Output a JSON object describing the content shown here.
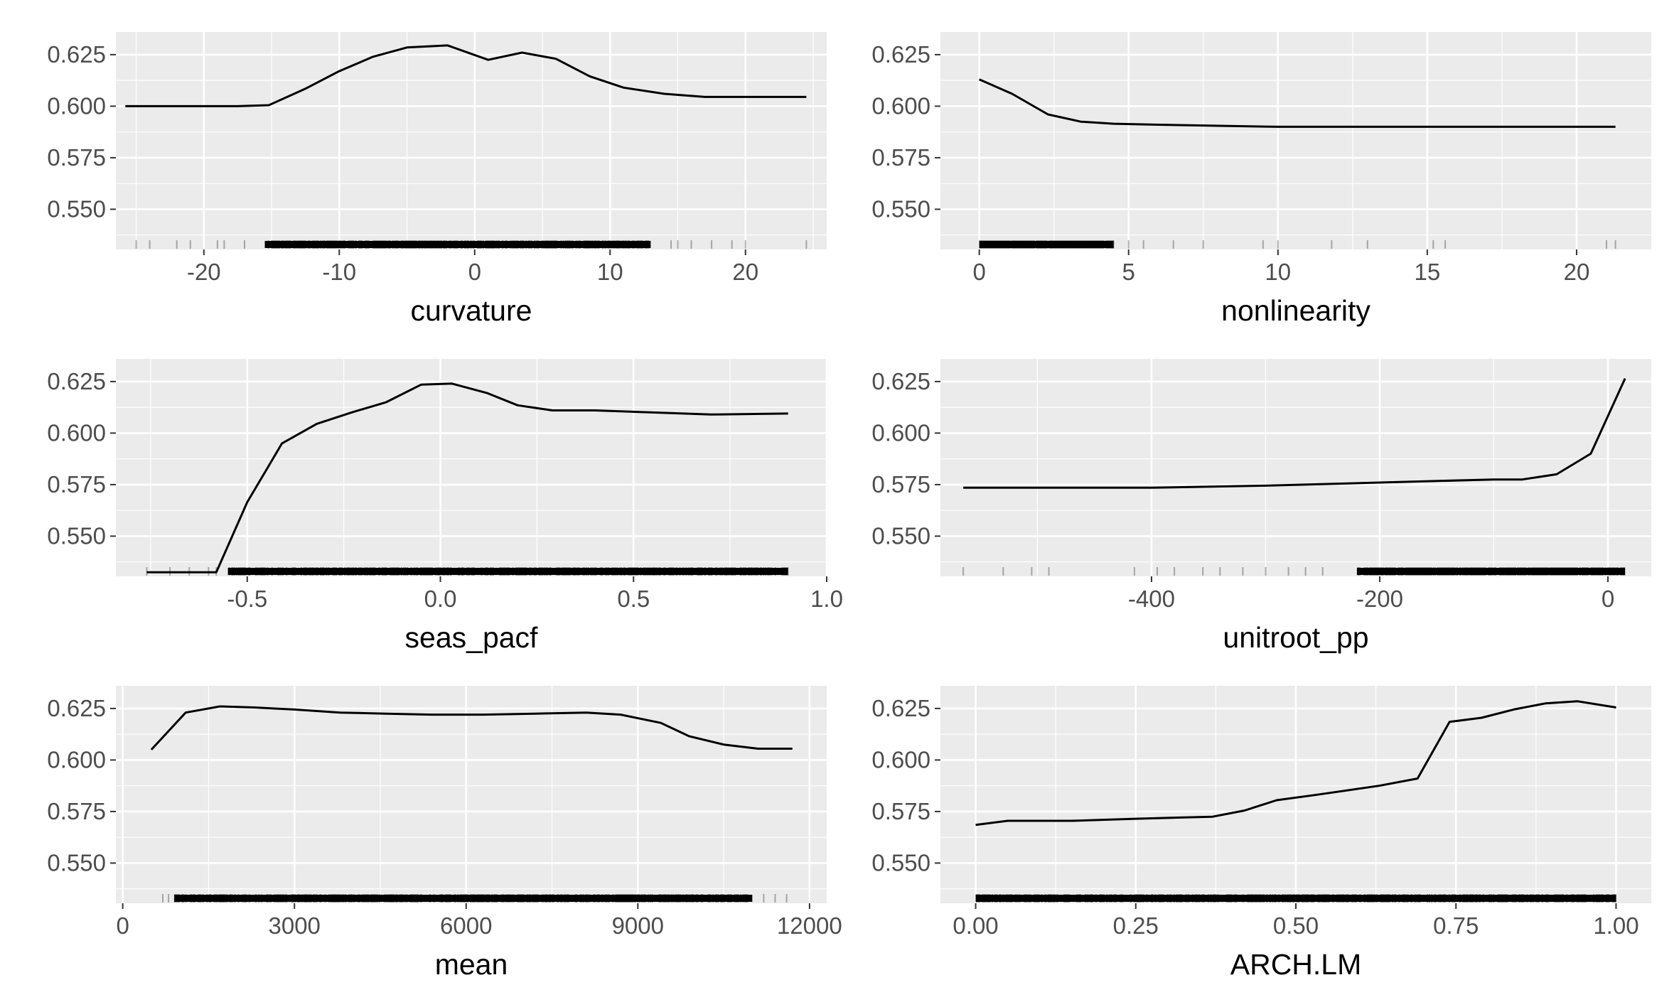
{
  "chart_data": [
    {
      "type": "line",
      "xlabel": "curvature",
      "xlim": [
        -26.5,
        26
      ],
      "ylim": [
        0.5305,
        0.636
      ],
      "xticks": [
        -20,
        -10,
        0,
        10,
        20
      ],
      "xtick_labels": [
        "-20",
        "-10",
        "0",
        "10",
        "20"
      ],
      "yticks": [
        0.55,
        0.575,
        0.6,
        0.625
      ],
      "ytick_labels": [
        "0.550",
        "0.575",
        "0.600",
        "0.625"
      ],
      "grid": true,
      "rug": "x-axis rug of observations",
      "x": [
        -25.8,
        -20,
        -17.5,
        -15.2,
        -12.5,
        -10,
        -7.5,
        -5,
        -2,
        1,
        3.5,
        6,
        8.5,
        11,
        14,
        17,
        20,
        24.5
      ],
      "y": [
        0.6,
        0.6,
        0.6,
        0.6005,
        0.6085,
        0.617,
        0.624,
        0.6285,
        0.6295,
        0.6225,
        0.626,
        0.623,
        0.6145,
        0.609,
        0.606,
        0.6045,
        0.6045,
        0.6045
      ]
    },
    {
      "type": "line",
      "xlabel": "nonlinearity",
      "xlim": [
        -1.3,
        22.5
      ],
      "ylim": [
        0.5305,
        0.636
      ],
      "xticks": [
        0,
        5,
        10,
        15,
        20
      ],
      "xtick_labels": [
        "0",
        "5",
        "10",
        "15",
        "20"
      ],
      "yticks": [
        0.55,
        0.575,
        0.6,
        0.625
      ],
      "ytick_labels": [
        "0.550",
        "0.575",
        "0.600",
        "0.625"
      ],
      "grid": true,
      "rug": "x-axis rug of observations",
      "x": [
        0,
        1.1,
        2.3,
        3.4,
        4.5,
        6,
        8,
        10,
        14,
        18,
        21.3
      ],
      "y": [
        0.613,
        0.606,
        0.596,
        0.5925,
        0.5915,
        0.591,
        0.5905,
        0.59,
        0.59,
        0.59,
        0.59
      ]
    },
    {
      "type": "line",
      "xlabel": "seas_pacf",
      "xlim": [
        -0.84,
        1.0
      ],
      "ylim": [
        0.5305,
        0.636
      ],
      "xticks": [
        -0.5,
        0.0,
        0.5,
        1.0
      ],
      "xtick_labels": [
        "-0.5",
        "0.0",
        "0.5",
        "1.0"
      ],
      "yticks": [
        0.55,
        0.575,
        0.6,
        0.625
      ],
      "ytick_labels": [
        "0.550",
        "0.575",
        "0.600",
        "0.625"
      ],
      "grid": true,
      "rug": "x-axis rug of observations",
      "x": [
        -0.76,
        -0.58,
        -0.5,
        -0.41,
        -0.32,
        -0.23,
        -0.14,
        -0.05,
        0.03,
        0.12,
        0.2,
        0.29,
        0.4,
        0.55,
        0.7,
        0.9
      ],
      "y": [
        0.5325,
        0.5325,
        0.5665,
        0.595,
        0.6045,
        0.61,
        0.615,
        0.6235,
        0.624,
        0.6195,
        0.6135,
        0.611,
        0.611,
        0.61,
        0.609,
        0.6095
      ]
    },
    {
      "type": "line",
      "xlabel": "unitroot_pp",
      "xlim": [
        -585,
        38
      ],
      "ylim": [
        0.5305,
        0.636
      ],
      "xticks": [
        -400,
        -200,
        0
      ],
      "xtick_labels": [
        "-400",
        "-200",
        "0"
      ],
      "yticks": [
        0.55,
        0.575,
        0.6,
        0.625
      ],
      "ytick_labels": [
        "0.550",
        "0.575",
        "0.600",
        "0.625"
      ],
      "grid": true,
      "rug": "x-axis rug of observations",
      "x": [
        -565,
        -400,
        -300,
        -200,
        -100,
        -75,
        -45,
        -15,
        15
      ],
      "y": [
        0.5735,
        0.5735,
        0.5745,
        0.576,
        0.5775,
        0.5775,
        0.58,
        0.59,
        0.6265
      ]
    },
    {
      "type": "line",
      "xlabel": "mean",
      "xlim": [
        -120,
        12300
      ],
      "ylim": [
        0.5305,
        0.636
      ],
      "xticks": [
        0,
        3000,
        6000,
        9000,
        12000
      ],
      "xtick_labels": [
        "0",
        "3000",
        "6000",
        "9000",
        "12000"
      ],
      "yticks": [
        0.55,
        0.575,
        0.6,
        0.625
      ],
      "ytick_labels": [
        "0.550",
        "0.575",
        "0.600",
        "0.625"
      ],
      "grid": true,
      "rug": "x-axis rug of observations",
      "x": [
        500,
        1100,
        1700,
        2300,
        3000,
        3800,
        4600,
        5400,
        6300,
        7200,
        8100,
        8700,
        9400,
        9900,
        10500,
        11100,
        11700
      ],
      "y": [
        0.605,
        0.623,
        0.626,
        0.6255,
        0.6245,
        0.623,
        0.6225,
        0.622,
        0.622,
        0.6225,
        0.623,
        0.622,
        0.618,
        0.6115,
        0.6075,
        0.6055,
        0.6055
      ]
    },
    {
      "type": "line",
      "xlabel": "ARCH.LM",
      "xlim": [
        -0.055,
        1.055
      ],
      "ylim": [
        0.5305,
        0.636
      ],
      "xticks": [
        0.0,
        0.25,
        0.5,
        0.75,
        1.0
      ],
      "xtick_labels": [
        "0.00",
        "0.25",
        "0.50",
        "0.75",
        "1.00"
      ],
      "yticks": [
        0.55,
        0.575,
        0.6,
        0.625
      ],
      "ytick_labels": [
        "0.550",
        "0.575",
        "0.600",
        "0.625"
      ],
      "grid": true,
      "rug": "x-axis rug of observations",
      "x": [
        0.0,
        0.05,
        0.15,
        0.25,
        0.37,
        0.42,
        0.47,
        0.53,
        0.63,
        0.69,
        0.74,
        0.79,
        0.84,
        0.89,
        0.94,
        1.0
      ],
      "y": [
        0.5685,
        0.5705,
        0.5705,
        0.5715,
        0.5725,
        0.5755,
        0.5805,
        0.583,
        0.5875,
        0.591,
        0.6185,
        0.6205,
        0.6245,
        0.6275,
        0.6285,
        0.6255
      ]
    }
  ]
}
